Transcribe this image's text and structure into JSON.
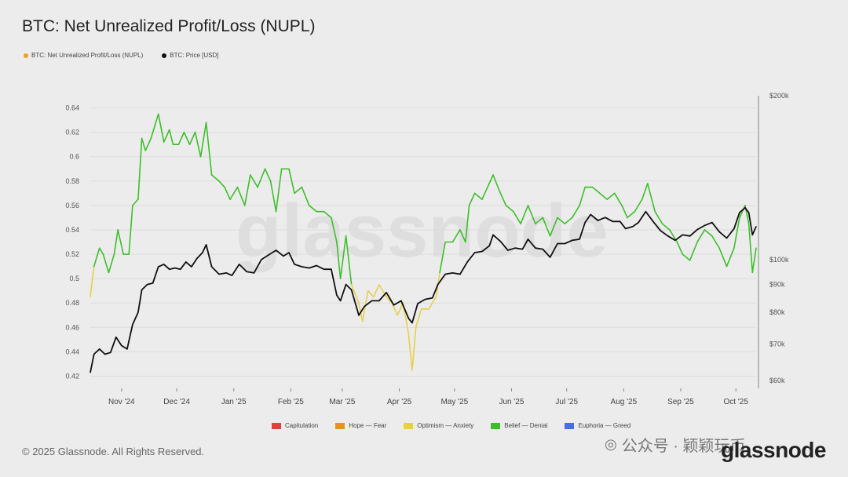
{
  "header": {
    "title": "BTC: Net Unrealized Profit/Loss (NUPL)"
  },
  "legend": [
    {
      "label": "BTC: Net Unrealized Profit/Loss (NUPL)",
      "color": "#f0a020"
    },
    {
      "label": "BTC: Price [USD]",
      "color": "#111111"
    }
  ],
  "phases": [
    {
      "label": "Capitulation",
      "color": "#d9443c"
    },
    {
      "label": "Hope — Fear",
      "color": "#e8902a"
    },
    {
      "label": "Optimism — Anxiety",
      "color": "#e8cf4a"
    },
    {
      "label": "Belief — Denial",
      "color": "#3dbf2a"
    },
    {
      "label": "Euphoria — Greed",
      "color": "#4a6de0"
    }
  ],
  "footer": {
    "copyright": "© 2025 Glassnode. All Rights Reserved.",
    "wechat": "公众号 · 颖颖玩币",
    "brand": "glassnode",
    "watermark": "glassnode"
  },
  "chart_data": {
    "type": "line",
    "title": "BTC: Net Unrealized Profit/Loss (NUPL)",
    "x_ticks": [
      "Nov '24",
      "Dec '24",
      "Jan '25",
      "Feb '25",
      "Mar '25",
      "Apr '25",
      "May '25",
      "Jun '25",
      "Jul '25",
      "Aug '25",
      "Sep '25",
      "Oct '25"
    ],
    "x_range": [
      "2024-10-15",
      "2025-10-12"
    ],
    "left_axis": {
      "ticks": [
        0.42,
        0.44,
        0.46,
        0.48,
        0.5,
        0.52,
        0.54,
        0.56,
        0.58,
        0.6,
        0.62,
        0.64
      ],
      "ylim": [
        0.41,
        0.65
      ]
    },
    "right_axis": {
      "scale": "log",
      "ticks": [
        {
          "label": "$60k",
          "value": 60000
        },
        {
          "label": "$70k",
          "value": 70000
        },
        {
          "label": "$80k",
          "value": 80000
        },
        {
          "label": "$90k",
          "value": 90000
        },
        {
          "label": "$100k",
          "value": 100000
        },
        {
          "label": "$200k",
          "value": 200000
        }
      ],
      "ylim": [
        58000,
        200000
      ]
    },
    "grid": true,
    "series": [
      {
        "name": "BTC: Net Unrealized Profit/Loss (NUPL)",
        "values": [
          [
            "2024-10-15",
            0.485
          ],
          [
            "2024-10-17",
            0.51
          ],
          [
            "2024-10-20",
            0.525
          ],
          [
            "2024-10-22",
            0.52
          ],
          [
            "2024-10-25",
            0.505
          ],
          [
            "2024-10-28",
            0.52
          ],
          [
            "2024-10-30",
            0.54
          ],
          [
            "2024-11-02",
            0.52
          ],
          [
            "2024-11-05",
            0.52
          ],
          [
            "2024-11-07",
            0.56
          ],
          [
            "2024-11-10",
            0.565
          ],
          [
            "2024-11-12",
            0.615
          ],
          [
            "2024-11-14",
            0.605
          ],
          [
            "2024-11-17",
            0.615
          ],
          [
            "2024-11-19",
            0.625
          ],
          [
            "2024-11-21",
            0.635
          ],
          [
            "2024-11-24",
            0.612
          ],
          [
            "2024-11-27",
            0.622
          ],
          [
            "2024-11-29",
            0.61
          ],
          [
            "2024-12-02",
            0.61
          ],
          [
            "2024-12-05",
            0.62
          ],
          [
            "2024-12-08",
            0.61
          ],
          [
            "2024-12-11",
            0.62
          ],
          [
            "2024-12-14",
            0.6
          ],
          [
            "2024-12-17",
            0.628
          ],
          [
            "2024-12-20",
            0.585
          ],
          [
            "2024-12-24",
            0.58
          ],
          [
            "2024-12-27",
            0.575
          ],
          [
            "2024-12-30",
            0.565
          ],
          [
            "2025-01-03",
            0.575
          ],
          [
            "2025-01-07",
            0.56
          ],
          [
            "2025-01-10",
            0.585
          ],
          [
            "2025-01-14",
            0.575
          ],
          [
            "2025-01-18",
            0.59
          ],
          [
            "2025-01-21",
            0.58
          ],
          [
            "2025-01-24",
            0.555
          ],
          [
            "2025-01-27",
            0.59
          ],
          [
            "2025-01-31",
            0.59
          ],
          [
            "2025-02-03",
            0.57
          ],
          [
            "2025-02-07",
            0.575
          ],
          [
            "2025-02-11",
            0.56
          ],
          [
            "2025-02-15",
            0.555
          ],
          [
            "2025-02-19",
            0.555
          ],
          [
            "2025-02-23",
            0.55
          ],
          [
            "2025-02-26",
            0.53
          ],
          [
            "2025-02-28",
            0.5
          ],
          [
            "2025-03-03",
            0.535
          ],
          [
            "2025-03-06",
            0.495
          ],
          [
            "2025-03-10",
            0.48
          ],
          [
            "2025-03-12",
            0.465
          ],
          [
            "2025-03-15",
            0.49
          ],
          [
            "2025-03-18",
            0.485
          ],
          [
            "2025-03-21",
            0.495
          ],
          [
            "2025-03-25",
            0.485
          ],
          [
            "2025-03-28",
            0.48
          ],
          [
            "2025-03-31",
            0.47
          ],
          [
            "2025-04-03",
            0.48
          ],
          [
            "2025-04-06",
            0.455
          ],
          [
            "2025-04-08",
            0.425
          ],
          [
            "2025-04-10",
            0.46
          ],
          [
            "2025-04-13",
            0.475
          ],
          [
            "2025-04-17",
            0.475
          ],
          [
            "2025-04-21",
            0.485
          ],
          [
            "2025-04-23",
            0.505
          ],
          [
            "2025-04-26",
            0.53
          ],
          [
            "2025-04-30",
            0.53
          ],
          [
            "2025-05-04",
            0.54
          ],
          [
            "2025-05-07",
            0.53
          ],
          [
            "2025-05-09",
            0.56
          ],
          [
            "2025-05-12",
            0.57
          ],
          [
            "2025-05-16",
            0.565
          ],
          [
            "2025-05-19",
            0.575
          ],
          [
            "2025-05-22",
            0.585
          ],
          [
            "2025-05-26",
            0.57
          ],
          [
            "2025-05-29",
            0.56
          ],
          [
            "2025-06-02",
            0.555
          ],
          [
            "2025-06-06",
            0.545
          ],
          [
            "2025-06-10",
            0.56
          ],
          [
            "2025-06-14",
            0.545
          ],
          [
            "2025-06-18",
            0.55
          ],
          [
            "2025-06-22",
            0.535
          ],
          [
            "2025-06-26",
            0.55
          ],
          [
            "2025-06-30",
            0.545
          ],
          [
            "2025-07-04",
            0.55
          ],
          [
            "2025-07-08",
            0.56
          ],
          [
            "2025-07-11",
            0.575
          ],
          [
            "2025-07-15",
            0.575
          ],
          [
            "2025-07-19",
            0.57
          ],
          [
            "2025-07-23",
            0.565
          ],
          [
            "2025-07-27",
            0.57
          ],
          [
            "2025-07-31",
            0.56
          ],
          [
            "2025-08-03",
            0.55
          ],
          [
            "2025-08-07",
            0.555
          ],
          [
            "2025-08-11",
            0.565
          ],
          [
            "2025-08-14",
            0.578
          ],
          [
            "2025-08-18",
            0.555
          ],
          [
            "2025-08-22",
            0.545
          ],
          [
            "2025-08-26",
            0.54
          ],
          [
            "2025-08-30",
            0.53
          ],
          [
            "2025-09-02",
            0.52
          ],
          [
            "2025-09-06",
            0.515
          ],
          [
            "2025-09-10",
            0.53
          ],
          [
            "2025-09-14",
            0.54
          ],
          [
            "2025-09-18",
            0.535
          ],
          [
            "2025-09-22",
            0.525
          ],
          [
            "2025-09-26",
            0.51
          ],
          [
            "2025-09-30",
            0.525
          ],
          [
            "2025-10-03",
            0.55
          ],
          [
            "2025-10-06",
            0.56
          ],
          [
            "2025-10-08",
            0.545
          ],
          [
            "2025-10-10",
            0.505
          ],
          [
            "2025-10-12",
            0.525
          ]
        ]
      },
      {
        "name": "BTC: Price [USD]",
        "values": [
          [
            "2024-10-15",
            62000
          ],
          [
            "2024-10-17",
            67000
          ],
          [
            "2024-10-20",
            68500
          ],
          [
            "2024-10-23",
            67000
          ],
          [
            "2024-10-26",
            67500
          ],
          [
            "2024-10-29",
            72000
          ],
          [
            "2024-11-01",
            69500
          ],
          [
            "2024-11-04",
            68500
          ],
          [
            "2024-11-07",
            76000
          ],
          [
            "2024-11-10",
            80000
          ],
          [
            "2024-11-12",
            88000
          ],
          [
            "2024-11-15",
            90000
          ],
          [
            "2024-11-18",
            90500
          ],
          [
            "2024-11-21",
            97000
          ],
          [
            "2024-11-24",
            98000
          ],
          [
            "2024-11-27",
            96000
          ],
          [
            "2024-11-30",
            96500
          ],
          [
            "2024-12-03",
            96000
          ],
          [
            "2024-12-06",
            99000
          ],
          [
            "2024-12-09",
            97000
          ],
          [
            "2024-12-12",
            100500
          ],
          [
            "2024-12-15",
            103000
          ],
          [
            "2024-12-17",
            106500
          ],
          [
            "2024-12-20",
            97000
          ],
          [
            "2024-12-24",
            94000
          ],
          [
            "2024-12-28",
            94500
          ],
          [
            "2024-12-31",
            93500
          ],
          [
            "2025-01-04",
            98000
          ],
          [
            "2025-01-08",
            95000
          ],
          [
            "2025-01-12",
            94500
          ],
          [
            "2025-01-16",
            100000
          ],
          [
            "2025-01-20",
            102000
          ],
          [
            "2025-01-24",
            104000
          ],
          [
            "2025-01-28",
            101500
          ],
          [
            "2025-01-31",
            103000
          ],
          [
            "2025-02-03",
            98000
          ],
          [
            "2025-02-07",
            97000
          ],
          [
            "2025-02-11",
            96500
          ],
          [
            "2025-02-15",
            97500
          ],
          [
            "2025-02-19",
            96000
          ],
          [
            "2025-02-23",
            96000
          ],
          [
            "2025-02-26",
            86000
          ],
          [
            "2025-02-28",
            84000
          ],
          [
            "2025-03-03",
            90000
          ],
          [
            "2025-03-06",
            88000
          ],
          [
            "2025-03-10",
            79000
          ],
          [
            "2025-03-13",
            82000
          ],
          [
            "2025-03-17",
            84000
          ],
          [
            "2025-03-21",
            84000
          ],
          [
            "2025-03-25",
            87000
          ],
          [
            "2025-03-29",
            82500
          ],
          [
            "2025-04-02",
            84000
          ],
          [
            "2025-04-06",
            78000
          ],
          [
            "2025-04-08",
            76500
          ],
          [
            "2025-04-11",
            83000
          ],
          [
            "2025-04-15",
            84500
          ],
          [
            "2025-04-19",
            85000
          ],
          [
            "2025-04-22",
            90000
          ],
          [
            "2025-04-26",
            94000
          ],
          [
            "2025-04-30",
            94500
          ],
          [
            "2025-05-04",
            94000
          ],
          [
            "2025-05-08",
            99000
          ],
          [
            "2025-05-12",
            103000
          ],
          [
            "2025-05-16",
            103500
          ],
          [
            "2025-05-20",
            106000
          ],
          [
            "2025-05-22",
            111000
          ],
          [
            "2025-05-26",
            108000
          ],
          [
            "2025-05-30",
            104000
          ],
          [
            "2025-06-03",
            105000
          ],
          [
            "2025-06-07",
            104500
          ],
          [
            "2025-06-10",
            109000
          ],
          [
            "2025-06-14",
            105000
          ],
          [
            "2025-06-18",
            104500
          ],
          [
            "2025-06-22",
            101000
          ],
          [
            "2025-06-26",
            107000
          ],
          [
            "2025-06-30",
            107000
          ],
          [
            "2025-07-04",
            108500
          ],
          [
            "2025-07-08",
            109000
          ],
          [
            "2025-07-11",
            117000
          ],
          [
            "2025-07-14",
            121000
          ],
          [
            "2025-07-18",
            118000
          ],
          [
            "2025-07-22",
            119500
          ],
          [
            "2025-07-26",
            117500
          ],
          [
            "2025-07-30",
            117500
          ],
          [
            "2025-08-02",
            114000
          ],
          [
            "2025-08-06",
            115000
          ],
          [
            "2025-08-09",
            117000
          ],
          [
            "2025-08-13",
            122500
          ],
          [
            "2025-08-17",
            117500
          ],
          [
            "2025-08-21",
            113000
          ],
          [
            "2025-08-25",
            110500
          ],
          [
            "2025-08-29",
            108500
          ],
          [
            "2025-09-02",
            111000
          ],
          [
            "2025-09-06",
            110500
          ],
          [
            "2025-09-10",
            113500
          ],
          [
            "2025-09-14",
            115500
          ],
          [
            "2025-09-18",
            117000
          ],
          [
            "2025-09-22",
            112500
          ],
          [
            "2025-09-26",
            109500
          ],
          [
            "2025-09-30",
            114000
          ],
          [
            "2025-10-03",
            122000
          ],
          [
            "2025-10-06",
            124500
          ],
          [
            "2025-10-08",
            122000
          ],
          [
            "2025-10-10",
            111000
          ],
          [
            "2025-10-12",
            115000
          ]
        ]
      }
    ]
  }
}
